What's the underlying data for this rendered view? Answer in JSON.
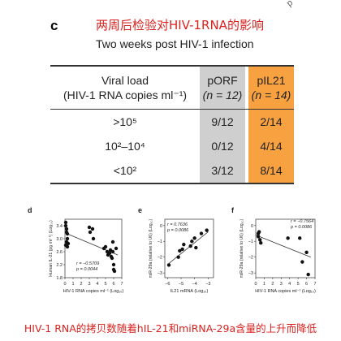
{
  "corner_clip": "p",
  "panel_c": {
    "letter": "c",
    "cn_title": "两周后检验对HIV-1RNA的影响",
    "subtitle": "Two weeks post HIV-1 infection",
    "table": {
      "header": {
        "col0": [
          "Viral load",
          "(HIV-1 RNA copies ml⁻¹)"
        ],
        "col1": [
          "pORF",
          "(n = 12)"
        ],
        "col2": [
          "pIL21",
          "(n = 14)"
        ]
      },
      "rows": [
        {
          "label": ">10⁵",
          "porf": "9/12",
          "pil21": "2/14"
        },
        {
          "label": "10²–10⁴",
          "porf": "0/12",
          "pil21": "4/14"
        },
        {
          "label": "<10²",
          "porf": "3/12",
          "pil21": "8/14"
        }
      ],
      "colors": {
        "porf": "#cfcfcf",
        "pil21": "#f7a140"
      }
    }
  },
  "chart_data": [
    {
      "panel": "d",
      "type": "scatter",
      "ylabel": "Human IL-21 (pg ml⁻¹) (Log₁₀)",
      "xlabel": "HIV-1 RNA copies ml⁻¹ (Log₁₀)",
      "xticks": [
        "0",
        "1",
        "2",
        "3",
        "4",
        "5",
        "6",
        "7"
      ],
      "xlim": [
        0,
        7
      ],
      "yticks": [
        "1.8",
        "2.2",
        "2.6",
        "3.0",
        "3.4"
      ],
      "ylim": [
        1.8,
        3.6
      ],
      "stats": [
        "r = −0.5709",
        "p = 0.0044"
      ],
      "x": [
        0.1,
        0.1,
        0.2,
        0.2,
        0.3,
        0.3,
        0.2,
        0.4,
        0.1,
        0.3,
        3,
        3.1,
        3.4,
        3.5,
        4.8,
        5.0,
        5.2,
        5.3,
        5.5,
        5.6,
        5.7,
        5.8,
        5.9,
        6.0,
        6.0,
        5.9,
        6.1,
        6.3
      ],
      "y": [
        3.5,
        3.4,
        3.3,
        3.2,
        3.15,
        3.0,
        2.9,
        2.85,
        2.8,
        2.75,
        3.35,
        3.2,
        3.3,
        3.0,
        2.7,
        2.75,
        2.6,
        2.5,
        2.55,
        2.65,
        2.45,
        2.4,
        2.6,
        2.2,
        2.05,
        2.9,
        2.0,
        2.7
      ],
      "fit": [
        [
          0,
          3.18
        ],
        [
          6.5,
          2.5
        ]
      ]
    },
    {
      "panel": "e",
      "type": "scatter",
      "ylabel": "miR-29a (relative to U6) (Log₁₀)",
      "xlabel": "IL21 mRNA (Log₁₀)",
      "xticks": [
        "−6",
        "−5",
        "−4",
        "−3"
      ],
      "xlim": [
        -6.2,
        -2.6
      ],
      "yticks": [
        "−3",
        "−2",
        "−1",
        "0"
      ],
      "ylim": [
        -3.3,
        0.4
      ],
      "stats": [
        "r = 0.7636",
        "p = 0.0086"
      ],
      "x": [
        -5.9,
        -5.2,
        -5.1,
        -4.9,
        -4.8,
        -4.3,
        -4.2,
        -4.0,
        -3.9,
        -3.5,
        -3.1
      ],
      "y": [
        -2.5,
        -2.0,
        -1.6,
        -1.5,
        -1.2,
        -1.3,
        -1.0,
        -0.8,
        -1.4,
        -0.5,
        -0.3
      ],
      "fit": [
        [
          -5.9,
          -2.4
        ],
        [
          -3.0,
          -0.4
        ]
      ]
    },
    {
      "panel": "f",
      "type": "scatter",
      "ylabel": "miR-29a (relative to U6) (Log₁₀)",
      "xlabel": "HIV-1 RNA copies ml⁻¹ (Log₁₀)",
      "xticks": [
        "0",
        "1",
        "2",
        "3",
        "4",
        "5",
        "6",
        "7"
      ],
      "xlim": [
        0,
        7
      ],
      "yticks": [
        "−3",
        "−2",
        "−1",
        "0"
      ],
      "ylim": [
        -3.3,
        0.4
      ],
      "stats": [
        "r = −0.7564",
        "p = 0.0086"
      ],
      "x": [
        0.3,
        0.3,
        0.4,
        0.5,
        0.6,
        3.8,
        5.2,
        5.5,
        6.0,
        6.2
      ],
      "y": [
        -0.5,
        -0.7,
        -0.4,
        -0.9,
        -1.1,
        -0.8,
        -0.8,
        -2.3,
        -1.7,
        -3.1
      ],
      "fit": [
        [
          0,
          -0.6
        ],
        [
          6.5,
          -2.0
        ]
      ]
    }
  ],
  "footer_cn": "HIV-1 RNA的拷贝数随着hIL-21和miRNA-29a含量的上升而降低"
}
